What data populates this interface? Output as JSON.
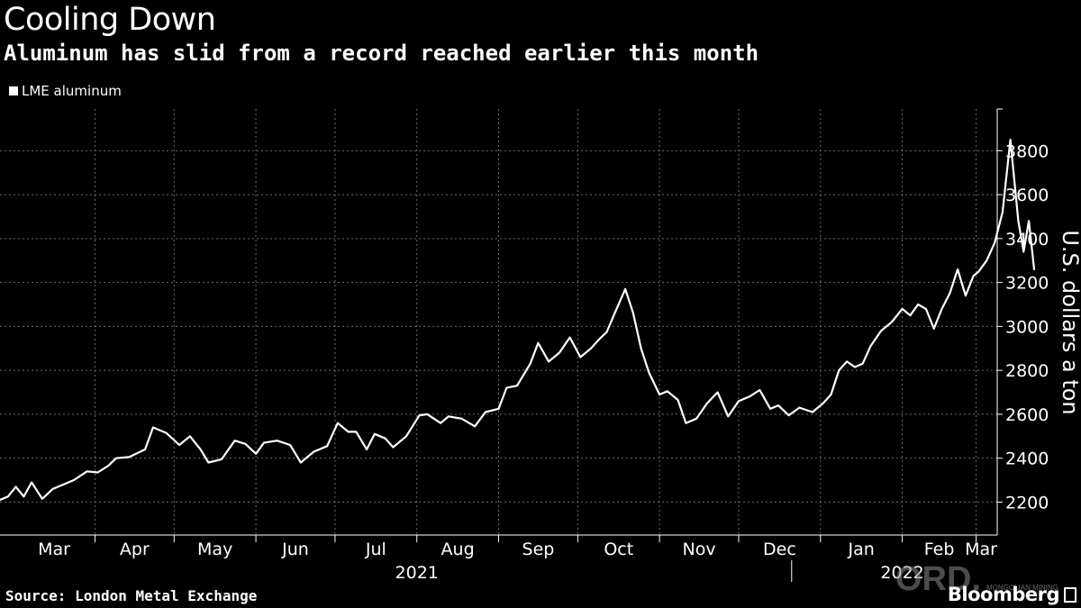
{
  "title": "Cooling Down",
  "subtitle": "Aluminum has slid from a record reached earlier this month",
  "source": "Source: London Metal Exchange",
  "brand": "Bloomberg",
  "watermark": "MONGOLIAN MINING",
  "colors": {
    "background": "#000000",
    "line": "#ffffff",
    "grid": "#6b6b6b"
  },
  "chart_data": {
    "type": "line",
    "title": "Cooling Down",
    "subtitle": "Aluminum has slid from a record reached earlier this month",
    "ylabel": "U.S. dollars a ton",
    "xlabel": "",
    "ylim": [
      2050,
      3990
    ],
    "yticks": [
      2200,
      2400,
      2600,
      2800,
      3000,
      3200,
      3400,
      3600,
      3800
    ],
    "xlim": [
      "2021-02-24",
      "2022-03-09"
    ],
    "x_month_labels": [
      {
        "label": "Mar",
        "date": "2021-03-01"
      },
      {
        "label": "Apr",
        "date": "2021-04-01"
      },
      {
        "label": "May",
        "date": "2021-05-01"
      },
      {
        "label": "Jun",
        "date": "2021-06-01"
      },
      {
        "label": "Jul",
        "date": "2021-07-01"
      },
      {
        "label": "Aug",
        "date": "2021-08-01"
      },
      {
        "label": "Sep",
        "date": "2021-09-01"
      },
      {
        "label": "Oct",
        "date": "2021-10-01"
      },
      {
        "label": "Nov",
        "date": "2021-11-01"
      },
      {
        "label": "Dec",
        "date": "2021-12-01"
      },
      {
        "label": "Jan",
        "date": "2022-01-01"
      },
      {
        "label": "Feb",
        "date": "2022-02-01"
      },
      {
        "label": "Mar",
        "date": "2022-03-01"
      }
    ],
    "year_labels": [
      {
        "label": "2021",
        "date": "2021-08-01"
      },
      {
        "label": "2022",
        "date": "2022-02-01"
      }
    ],
    "grid": true,
    "legend_position": "top-left",
    "series": [
      {
        "name": "LME aluminum",
        "color": "#ffffff",
        "points": [
          [
            "2021-02-24",
            2210
          ],
          [
            "2021-02-27",
            2225
          ],
          [
            "2021-03-02",
            2270
          ],
          [
            "2021-03-05",
            2225
          ],
          [
            "2021-03-08",
            2290
          ],
          [
            "2021-03-12",
            2215
          ],
          [
            "2021-03-16",
            2260
          ],
          [
            "2021-03-19",
            2275
          ],
          [
            "2021-03-24",
            2300
          ],
          [
            "2021-03-29",
            2340
          ],
          [
            "2021-04-02",
            2335
          ],
          [
            "2021-04-06",
            2365
          ],
          [
            "2021-04-09",
            2400
          ],
          [
            "2021-04-14",
            2405
          ],
          [
            "2021-04-20",
            2440
          ],
          [
            "2021-04-23",
            2540
          ],
          [
            "2021-04-28",
            2515
          ],
          [
            "2021-05-03",
            2460
          ],
          [
            "2021-05-07",
            2500
          ],
          [
            "2021-05-11",
            2440
          ],
          [
            "2021-05-14",
            2380
          ],
          [
            "2021-05-19",
            2395
          ],
          [
            "2021-05-24",
            2480
          ],
          [
            "2021-05-28",
            2465
          ],
          [
            "2021-06-01",
            2420
          ],
          [
            "2021-06-04",
            2470
          ],
          [
            "2021-06-09",
            2480
          ],
          [
            "2021-06-14",
            2460
          ],
          [
            "2021-06-18",
            2380
          ],
          [
            "2021-06-23",
            2430
          ],
          [
            "2021-06-28",
            2455
          ],
          [
            "2021-07-02",
            2560
          ],
          [
            "2021-07-06",
            2520
          ],
          [
            "2021-07-09",
            2520
          ],
          [
            "2021-07-13",
            2440
          ],
          [
            "2021-07-16",
            2510
          ],
          [
            "2021-07-20",
            2490
          ],
          [
            "2021-07-23",
            2450
          ],
          [
            "2021-07-28",
            2500
          ],
          [
            "2021-08-02",
            2595
          ],
          [
            "2021-08-05",
            2600
          ],
          [
            "2021-08-10",
            2560
          ],
          [
            "2021-08-13",
            2590
          ],
          [
            "2021-08-18",
            2580
          ],
          [
            "2021-08-23",
            2545
          ],
          [
            "2021-08-27",
            2610
          ],
          [
            "2021-09-01",
            2625
          ],
          [
            "2021-09-04",
            2720
          ],
          [
            "2021-09-08",
            2730
          ],
          [
            "2021-09-13",
            2830
          ],
          [
            "2021-09-16",
            2925
          ],
          [
            "2021-09-20",
            2840
          ],
          [
            "2021-09-24",
            2880
          ],
          [
            "2021-09-28",
            2950
          ],
          [
            "2021-10-02",
            2860
          ],
          [
            "2021-10-06",
            2900
          ],
          [
            "2021-10-09",
            2940
          ],
          [
            "2021-10-12",
            2975
          ],
          [
            "2021-10-15",
            3060
          ],
          [
            "2021-10-19",
            3170
          ],
          [
            "2021-10-22",
            3060
          ],
          [
            "2021-10-25",
            2900
          ],
          [
            "2021-10-28",
            2790
          ],
          [
            "2021-11-01",
            2690
          ],
          [
            "2021-11-04",
            2705
          ],
          [
            "2021-11-08",
            2665
          ],
          [
            "2021-11-11",
            2560
          ],
          [
            "2021-11-15",
            2580
          ],
          [
            "2021-11-19",
            2650
          ],
          [
            "2021-11-23",
            2700
          ],
          [
            "2021-11-27",
            2590
          ],
          [
            "2021-12-01",
            2660
          ],
          [
            "2021-12-05",
            2680
          ],
          [
            "2021-12-09",
            2710
          ],
          [
            "2021-12-13",
            2625
          ],
          [
            "2021-12-16",
            2640
          ],
          [
            "2021-12-20",
            2595
          ],
          [
            "2021-12-24",
            2630
          ],
          [
            "2021-12-29",
            2610
          ],
          [
            "2022-01-02",
            2650
          ],
          [
            "2022-01-05",
            2690
          ],
          [
            "2022-01-08",
            2800
          ],
          [
            "2022-01-11",
            2840
          ],
          [
            "2022-01-14",
            2815
          ],
          [
            "2022-01-17",
            2830
          ],
          [
            "2022-01-20",
            2910
          ],
          [
            "2022-01-24",
            2980
          ],
          [
            "2022-01-28",
            3020
          ],
          [
            "2022-02-01",
            3080
          ],
          [
            "2022-02-04",
            3050
          ],
          [
            "2022-02-07",
            3100
          ],
          [
            "2022-02-10",
            3080
          ],
          [
            "2022-02-13",
            2990
          ],
          [
            "2022-02-16",
            3080
          ],
          [
            "2022-02-19",
            3150
          ],
          [
            "2022-02-22",
            3260
          ],
          [
            "2022-02-25",
            3140
          ],
          [
            "2022-02-28",
            3230
          ],
          [
            "2022-03-02",
            3250
          ],
          [
            "2022-03-05",
            3300
          ],
          [
            "2022-03-08",
            3380
          ],
          [
            "2022-03-11",
            3520
          ],
          [
            "2022-03-14",
            3850
          ],
          [
            "2022-03-17",
            3480
          ],
          [
            "2022-03-19",
            3340
          ],
          [
            "2022-03-21",
            3480
          ],
          [
            "2022-03-23",
            3260
          ]
        ]
      }
    ]
  }
}
